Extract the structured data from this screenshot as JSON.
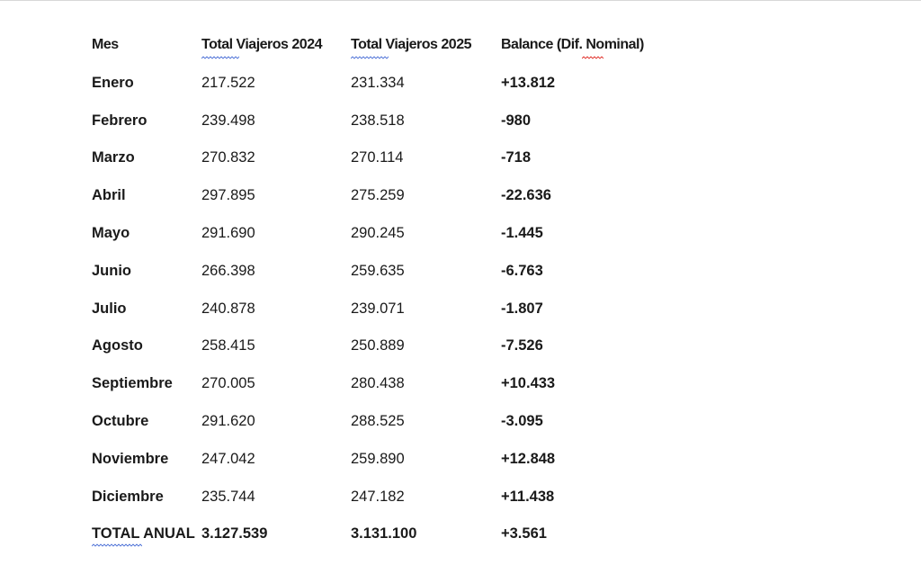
{
  "table": {
    "headers": [
      "Mes",
      "Total Viajeros 2024",
      "Total Viajeros 2025",
      "Balance (Dif. Nominal)"
    ],
    "rows": [
      [
        "Enero",
        "217.522",
        "231.334",
        "+13.812"
      ],
      [
        "Febrero",
        "239.498",
        "238.518",
        "-980"
      ],
      [
        "Marzo",
        "270.832",
        "270.114",
        "-718"
      ],
      [
        "Abril",
        "297.895",
        "275.259",
        "-22.636"
      ],
      [
        "Mayo",
        "291.690",
        "290.245",
        "-1.445"
      ],
      [
        "Junio",
        "266.398",
        "259.635",
        "-6.763"
      ],
      [
        "Julio",
        "240.878",
        "239.071",
        "-1.807"
      ],
      [
        "Agosto",
        "258.415",
        "250.889",
        "-7.526"
      ],
      [
        "Septiembre",
        "270.005",
        "280.438",
        "+10.433"
      ],
      [
        "Octubre",
        "291.620",
        "288.525",
        "-3.095"
      ],
      [
        "Noviembre",
        "247.042",
        "259.890",
        "+12.848"
      ],
      [
        "Diciembre",
        "235.744",
        "247.182",
        "+11.438"
      ]
    ],
    "total": [
      "TOTAL ANUAL",
      "3.127.539",
      "3.131.100",
      "+3.561"
    ]
  },
  "colors": {
    "text": "#1a1a1a",
    "grammar_squiggle": "#4a6fd6",
    "spelling_squiggle": "#e0302a"
  }
}
